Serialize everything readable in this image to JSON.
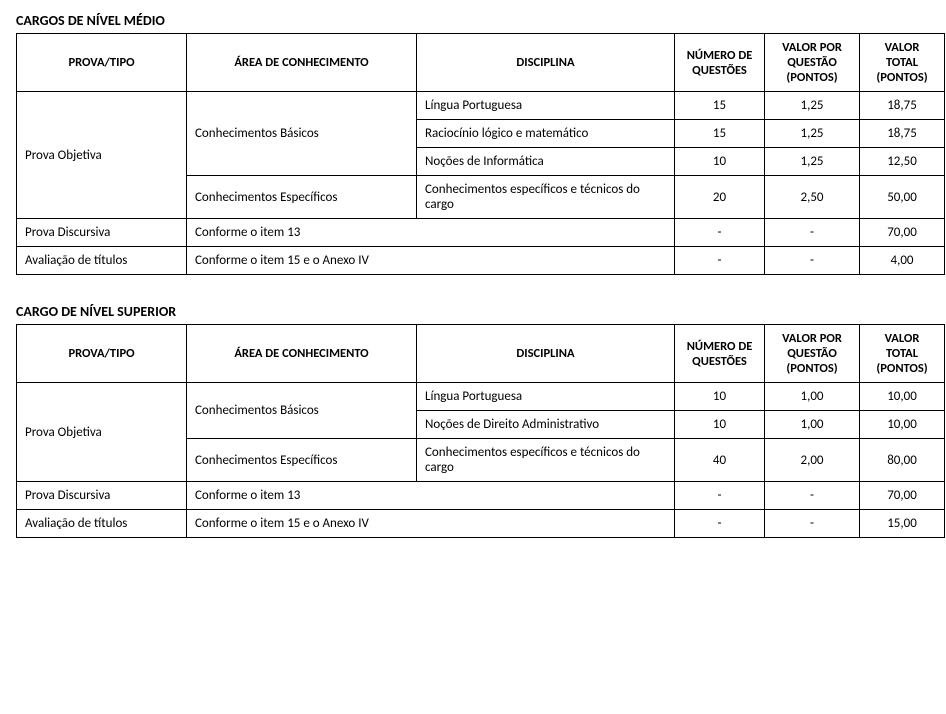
{
  "section_medio": {
    "title": "CARGOS DE NÍVEL MÉDIO",
    "headers": {
      "prova": "PROVA/TIPO",
      "area": "ÁREA DE CONHECIMENTO",
      "disciplina": "DISCIPLINA",
      "num": "NÚMERO DE QUESTÕES",
      "vpq": "VALOR POR QUESTÃO (PONTOS)",
      "vt": "VALOR TOTAL (PONTOS)"
    },
    "prova_objetiva_label": "Prova Objetiva",
    "area_basicos": "Conhecimentos Básicos",
    "area_especificos": "Conhecimentos Específicos",
    "rows": [
      {
        "disciplina": "Língua Portuguesa",
        "num": "15",
        "vpq": "1,25",
        "vt": "18,75"
      },
      {
        "disciplina": "Raciocínio lógico e matemático",
        "num": "15",
        "vpq": "1,25",
        "vt": "18,75"
      },
      {
        "disciplina": "Noções de Informática",
        "num": "10",
        "vpq": "1,25",
        "vt": "12,50"
      },
      {
        "disciplina": "Conhecimentos específicos e técnicos do cargo",
        "num": "20",
        "vpq": "2,50",
        "vt": "50,00"
      }
    ],
    "discursiva": {
      "label": "Prova Discursiva",
      "area": "Conforme o item 13",
      "num": "-",
      "vpq": "-",
      "vt": "70,00"
    },
    "titulos": {
      "label": "Avaliação de títulos",
      "area": "Conforme o item 15 e o Anexo IV",
      "num": "-",
      "vpq": "-",
      "vt": "4,00"
    }
  },
  "section_superior": {
    "title": "CARGO DE NÍVEL SUPERIOR",
    "headers": {
      "prova": "PROVA/TIPO",
      "area": "ÁREA DE CONHECIMENTO",
      "disciplina": "DISCIPLINA",
      "num": "NÚMERO DE QUESTÕES",
      "vpq": "VALOR POR QUESTÃO (PONTOS)",
      "vt": "VALOR TOTAL (PONTOS)"
    },
    "prova_objetiva_label": "Prova Objetiva",
    "area_basicos": "Conhecimentos Básicos",
    "area_especificos": "Conhecimentos Específicos",
    "rows": [
      {
        "disciplina": "Língua Portuguesa",
        "num": "10",
        "vpq": "1,00",
        "vt": "10,00"
      },
      {
        "disciplina": "Noções de Direito Administrativo",
        "num": "10",
        "vpq": "1,00",
        "vt": "10,00"
      },
      {
        "disciplina": "Conhecimentos específicos e técnicos do cargo",
        "num": "40",
        "vpq": "2,00",
        "vt": "80,00"
      }
    ],
    "discursiva": {
      "label": "Prova Discursiva",
      "area": "Conforme o item 13",
      "num": "-",
      "vpq": "-",
      "vt": "70,00"
    },
    "titulos": {
      "label": "Avaliação de títulos",
      "area": "Conforme o item 15 e o Anexo IV",
      "num": "-",
      "vpq": "-",
      "vt": "15,00"
    }
  }
}
